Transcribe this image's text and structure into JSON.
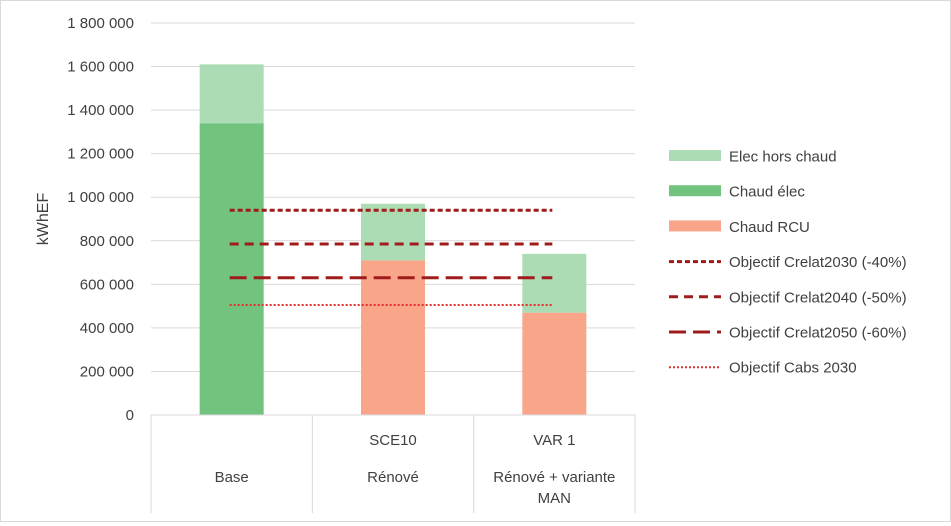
{
  "chart_data": {
    "type": "bar",
    "stacked": true,
    "ylabel": "kWhEF",
    "ylim": [
      0,
      1800000
    ],
    "y_ticks": [
      0,
      200000,
      400000,
      600000,
      800000,
      1000000,
      1200000,
      1400000,
      1600000,
      1800000
    ],
    "y_tick_labels": [
      "0",
      "200 000",
      "400 000",
      "600 000",
      "800 000",
      "1 000 000",
      "1 200 000",
      "1 400 000",
      "1 600 000",
      "1 800 000"
    ],
    "grid": true,
    "legend_position": "right",
    "categories": [
      {
        "top": "",
        "bottom": "Base"
      },
      {
        "top": "SCE10",
        "bottom": "Rénové"
      },
      {
        "top": "VAR 1",
        "bottom": "Rénové + variante MAN"
      }
    ],
    "series": [
      {
        "name": "Chaud RCU",
        "color": "#f8a58a",
        "values": [
          0,
          710000,
          470000
        ]
      },
      {
        "name": "Chaud élec",
        "color": "#71c37e",
        "values": [
          1340000,
          0,
          0
        ]
      },
      {
        "name": "Elec hors chaud",
        "color": "#abdcb4",
        "values": [
          270000,
          260000,
          270000
        ]
      }
    ],
    "targets": [
      {
        "name": "Objectif Crelat2030 (-40%)",
        "value": 940000,
        "color": "#a01b1b",
        "style": "dense-dash"
      },
      {
        "name": "Objectif Crelat2040 (-50%)",
        "value": 785000,
        "color": "#a01b1b",
        "style": "dash"
      },
      {
        "name": "Objectif Crelat2050 (-60%)",
        "value": 630000,
        "color": "#a01b1b",
        "style": "long-dash"
      },
      {
        "name": "Objectif Cabs 2030",
        "value": 505000,
        "color": "#e03030",
        "style": "dot"
      }
    ],
    "legend": [
      {
        "label": "Elec hors chaud",
        "kind": "patch",
        "color": "#abdcb4"
      },
      {
        "label": "Chaud élec",
        "kind": "patch",
        "color": "#71c37e"
      },
      {
        "label": "Chaud RCU",
        "kind": "patch",
        "color": "#f8a58a"
      },
      {
        "label": "Objectif Crelat2030 (-40%)",
        "kind": "line",
        "color": "#a01b1b",
        "style": "dense-dash"
      },
      {
        "label": "Objectif Crelat2040 (-50%)",
        "kind": "line",
        "color": "#a01b1b",
        "style": "dash"
      },
      {
        "label": "Objectif Crelat2050 (-60%)",
        "kind": "line",
        "color": "#a01b1b",
        "style": "long-dash"
      },
      {
        "label": "Objectif Cabs 2030",
        "kind": "line",
        "color": "#e03030",
        "style": "dot"
      }
    ]
  }
}
